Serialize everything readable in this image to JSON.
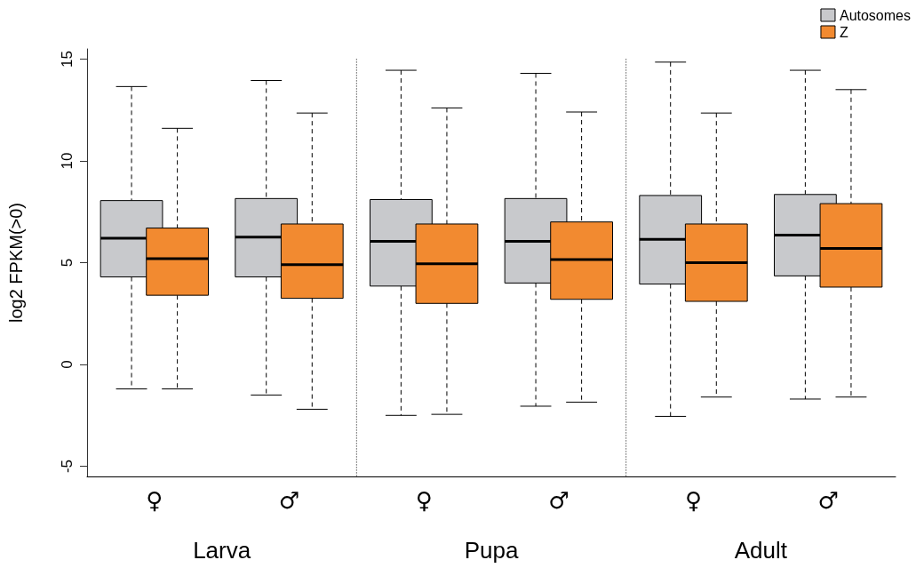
{
  "chart_data": {
    "type": "box",
    "ylabel": "log2 FPKM(>0)",
    "categories": [
      "♀",
      "♂",
      "♀",
      "♂",
      "♀",
      "♂"
    ],
    "series": [
      {
        "name": "Autosomes",
        "color": "#c8c9cc",
        "boxes": [
          {
            "low": -1.2,
            "q1": 4.3,
            "median": 6.2,
            "q3": 8.05,
            "high": 13.65
          },
          {
            "low": -1.5,
            "q1": 4.3,
            "median": 6.25,
            "q3": 8.15,
            "high": 13.95
          },
          {
            "low": -2.5,
            "q1": 3.85,
            "median": 6.05,
            "q3": 8.1,
            "high": 14.45
          },
          {
            "low": -2.05,
            "q1": 4.0,
            "median": 6.05,
            "q3": 8.15,
            "high": 14.3
          },
          {
            "low": -2.55,
            "q1": 3.95,
            "median": 6.15,
            "q3": 8.3,
            "high": 14.85
          },
          {
            "low": -1.7,
            "q1": 4.35,
            "median": 6.35,
            "q3": 8.35,
            "high": 14.45
          }
        ]
      },
      {
        "name": "Z",
        "color": "#f28a30",
        "boxes": [
          {
            "low": -1.2,
            "q1": 3.4,
            "median": 5.2,
            "q3": 6.7,
            "high": 11.6
          },
          {
            "low": -2.2,
            "q1": 3.25,
            "median": 4.9,
            "q3": 6.9,
            "high": 12.35
          },
          {
            "low": -2.45,
            "q1": 3.0,
            "median": 4.95,
            "q3": 6.9,
            "high": 12.6
          },
          {
            "low": -1.85,
            "q1": 3.2,
            "median": 5.15,
            "q3": 7.0,
            "high": 12.4
          },
          {
            "low": -1.6,
            "q1": 3.1,
            "median": 5.0,
            "q3": 6.9,
            "high": 12.35
          },
          {
            "low": -1.6,
            "q1": 3.8,
            "median": 5.7,
            "q3": 7.9,
            "high": 13.5
          }
        ]
      }
    ],
    "annotations": [
      "Larva",
      "Pupa",
      "Adult"
    ],
    "ylim": [
      -5.5,
      15.5
    ],
    "yticks": [
      -5,
      0,
      5,
      10,
      15
    ],
    "grid": false,
    "legend": "top right"
  }
}
